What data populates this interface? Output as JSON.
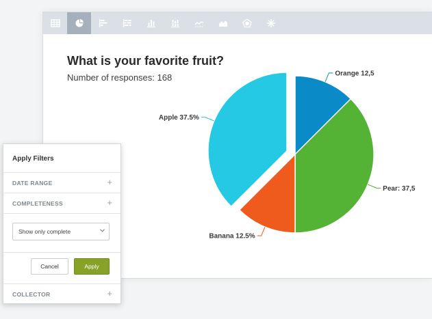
{
  "toolbar": {
    "icons": [
      "table-icon",
      "pie-chart-icon",
      "horizontal-bar-icon",
      "stacked-horizontal-bar-icon",
      "vertical-bar-icon",
      "stacked-vertical-bar-icon",
      "line-chart-icon",
      "area-chart-icon",
      "radar-chart-icon",
      "asterisk-chart-icon"
    ],
    "active": "pie-chart-icon"
  },
  "chart": {
    "title": "What is your favorite fruit?",
    "subtitle": "Number of responses: 168"
  },
  "chart_data": {
    "type": "pie",
    "title": "What is your favorite fruit?",
    "categories": [
      "Orange",
      "Pear",
      "Banana",
      "Apple"
    ],
    "values": [
      12.5,
      37.5,
      12.5,
      37.5
    ],
    "labels": [
      "Orange 12,5",
      "Pear: 37,5",
      "Banana 12.5%",
      "Apple 37.5%"
    ],
    "colors": [
      "#0a8ac7",
      "#54b335",
      "#ef5a1d",
      "#26c9e3"
    ],
    "exploded": [
      "Apple"
    ]
  },
  "filters": {
    "title": "Apply Filters",
    "date_range": "DATE RANGE",
    "completeness": "COMPLETENESS",
    "select_value": "Show only complete",
    "cancel": "Cancel",
    "apply": "Apply",
    "collector": "COLLECTOR",
    "plus": "+"
  }
}
